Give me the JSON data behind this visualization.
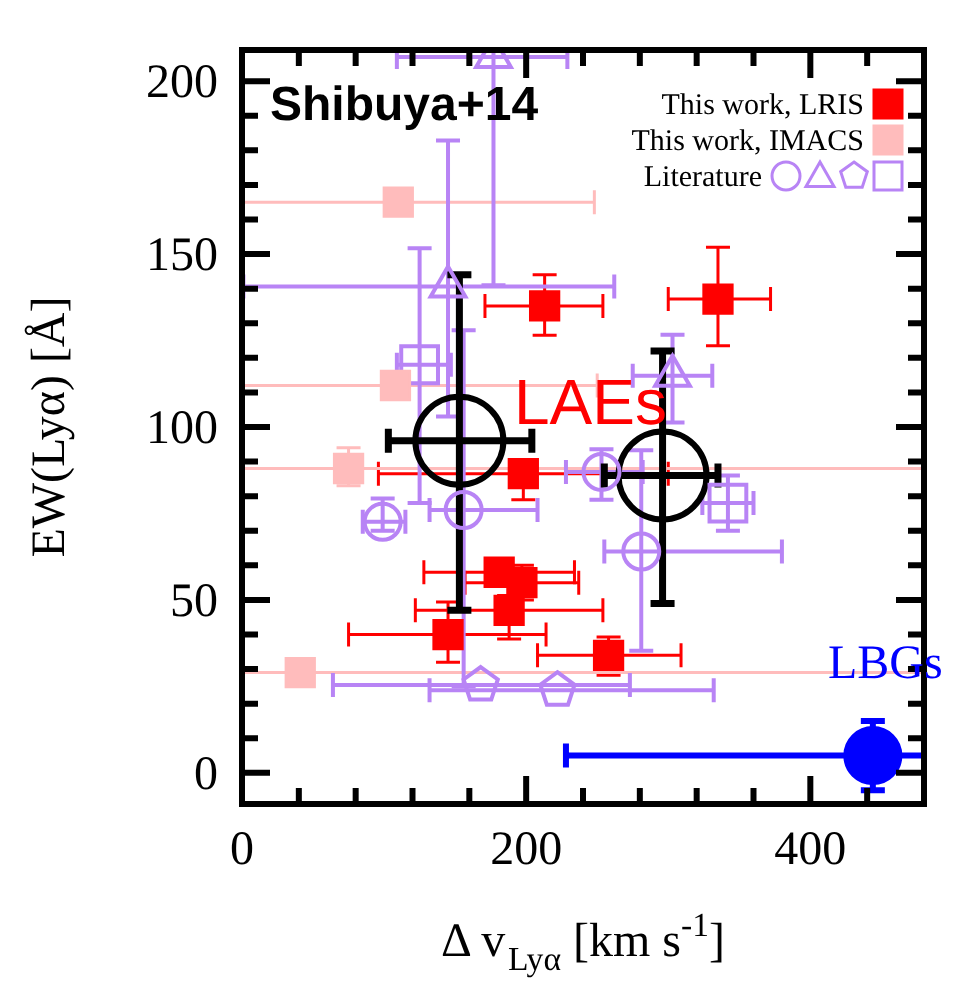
{
  "chart_data": {
    "type": "scatter",
    "xlabel": "Δ v$_{Lyα}$ [km s$^{-1}$]",
    "ylabel": "EW(Lyα) [Å]",
    "xlim": [
      0,
      480
    ],
    "ylim": [
      -9,
      209
    ],
    "xticks": [
      0,
      {
        "value": 40,
        "label": null
      },
      {
        "value": 80,
        "label": null
      },
      {
        "value": 120,
        "label": null
      },
      {
        "value": 160,
        "label": null
      },
      200,
      {
        "value": 240,
        "label": null
      },
      {
        "value": 280,
        "label": null
      },
      {
        "value": 320,
        "label": null
      },
      {
        "value": 360,
        "label": null
      },
      400,
      {
        "value": 440,
        "label": null
      },
      {
        "value": 480,
        "label": null
      }
    ],
    "yticks": [
      0,
      {
        "value": 10,
        "label": null
      },
      {
        "value": 20,
        "label": null
      },
      {
        "value": 30,
        "label": null
      },
      {
        "value": 40,
        "label": null
      },
      50,
      {
        "value": 60,
        "label": null
      },
      {
        "value": 70,
        "label": null
      },
      {
        "value": 80,
        "label": null
      },
      {
        "value": 90,
        "label": null
      },
      100,
      {
        "value": 110,
        "label": null
      },
      {
        "value": 120,
        "label": null
      },
      {
        "value": 130,
        "label": null
      },
      {
        "value": 140,
        "label": null
      },
      150,
      {
        "value": 160,
        "label": null
      },
      {
        "value": 170,
        "label": null
      },
      {
        "value": 180,
        "label": null
      },
      {
        "value": 190,
        "label": null
      },
      200
    ],
    "legend": "top right",
    "annotations": [
      "Shibuya+14",
      "LAEs",
      "LBGs"
    ],
    "series": [
      {
        "name": "This work, LRIS",
        "type": "scatter",
        "marker": "square",
        "color": "#ff0000",
        "x": [
          213,
          335,
          198,
          181,
          197,
          188,
          145,
          258
        ],
        "values": [
          135,
          137,
          86.5,
          58,
          55,
          47,
          40,
          34
        ],
        "errors": [
          [
            126.5,
            144
          ],
          [
            123.5,
            152
          ],
          [
            79,
            90.5
          ],
          null,
          [
            50,
            60
          ],
          [
            38.7,
            51.3
          ],
          [
            32,
            49.4
          ],
          [
            28.2,
            39.3
          ]
        ],
        "xerrors": [
          [
            171,
            254
          ],
          [
            300,
            372
          ],
          [
            96,
            300
          ],
          [
            128,
            234
          ],
          [
            157,
            237
          ],
          [
            122,
            254
          ],
          [
            75,
            214
          ],
          [
            208,
            309
          ]
        ]
      },
      {
        "name": "This work, IMACS",
        "type": "scatter",
        "marker": "square",
        "color": "#ffbcbc",
        "x": [
          110,
          108,
          75,
          41
        ],
        "values": [
          165,
          112,
          88,
          29
        ],
        "errors": [
          null,
          null,
          [
            83,
            94
          ],
          null
        ],
        "xerrors": [
          [
            0,
            248
          ],
          [
            0,
            250
          ],
          [
            0,
            480
          ],
          [
            0,
            480
          ]
        ]
      },
      {
        "name": "Literature",
        "type": "scatter",
        "marker": "circle",
        "color": "#b884f5",
        "x": [
          156,
          99,
          253,
          281
        ],
        "values": [
          76,
          72.6,
          87,
          64
        ],
        "errors": [
          [
            25,
            128
          ],
          [
            70,
            79.3
          ],
          [
            79,
            93.6
          ],
          [
            35.3,
            93.3
          ]
        ],
        "xerrors": [
          [
            132,
            208
          ],
          [
            85,
            115
          ],
          [
            228,
            282
          ],
          [
            255,
            380
          ]
        ]
      },
      {
        "type": "scatter",
        "marker": "triangle",
        "color": "#b884f5",
        "x": [
          177,
          145,
          303
        ],
        "values": [
          207,
          140.6,
          114.8
        ],
        "errors": [
          [
            141,
            209
          ],
          [
            103,
            182.8
          ],
          [
            101.3,
            126.7
          ]
        ],
        "xerrors": [
          [
            109,
            229
          ],
          [
            1,
            262
          ],
          [
            275,
            331
          ]
        ]
      },
      {
        "type": "scatter",
        "color": "#b884f5",
        "x": [
          168,
          222
        ],
        "values": [
          25.4,
          23.9
        ],
        "xerrors": [
          [
            64,
            273
          ],
          [
            132,
            332
          ]
        ]
      },
      {
        "type": "scatter",
        "marker": "square",
        "color": "#b884f5",
        "x": [
          125,
          342
        ],
        "values": [
          118,
          78
        ],
        "errors": [
          [
            78,
            151.7
          ],
          [
            70,
            86
          ]
        ],
        "xerrors": [
          [
            109,
            147
          ],
          [
            324,
            360
          ]
        ]
      },
      {
        "type": "scatter",
        "marker": "circle",
        "color": "#000000",
        "x": [
          153,
          296
        ],
        "values": [
          96,
          86
        ],
        "errors": [
          [
            47,
            144
          ],
          [
            49,
            122
          ]
        ],
        "xerrors": [
          [
            103,
            204
          ],
          [
            255,
            335
          ]
        ]
      },
      {
        "type": "scatter",
        "marker": "circle",
        "color": "#0000ff",
        "x": [
          444
        ],
        "values": [
          5
        ],
        "errors": [
          10
        ],
        "xerrors": [
          [
            228,
            480
          ]
        ]
      }
    ]
  }
}
